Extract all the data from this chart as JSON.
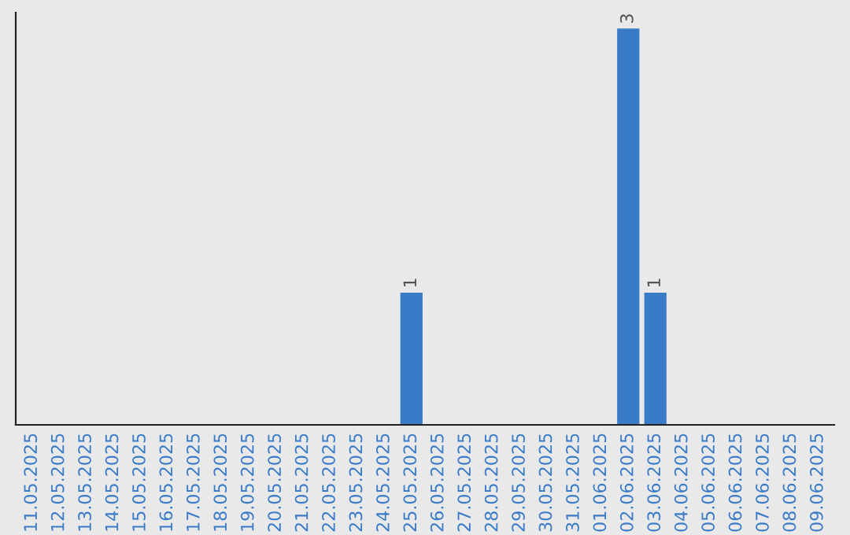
{
  "chart_data": {
    "type": "bar",
    "categories": [
      "11.05.2025",
      "12.05.2025",
      "13.05.2025",
      "14.05.2025",
      "15.05.2025",
      "16.05.2025",
      "17.05.2025",
      "18.05.2025",
      "19.05.2025",
      "20.05.2025",
      "21.05.2025",
      "22.05.2025",
      "23.05.2025",
      "24.05.2025",
      "25.05.2025",
      "26.05.2025",
      "27.05.2025",
      "28.05.2025",
      "29.05.2025",
      "30.05.2025",
      "31.05.2025",
      "01.06.2025",
      "02.06.2025",
      "03.06.2025",
      "04.06.2025",
      "05.06.2025",
      "06.06.2025",
      "07.06.2025",
      "08.06.2025",
      "09.06.2025"
    ],
    "values": [
      null,
      null,
      null,
      null,
      null,
      null,
      null,
      null,
      null,
      null,
      null,
      null,
      null,
      null,
      1,
      null,
      null,
      null,
      null,
      null,
      null,
      null,
      3,
      1,
      null,
      null,
      null,
      null,
      null,
      null
    ],
    "color": "#3a7bc8",
    "data_labels": true,
    "grid": false,
    "legend": false,
    "tick_labels": "x"
  }
}
